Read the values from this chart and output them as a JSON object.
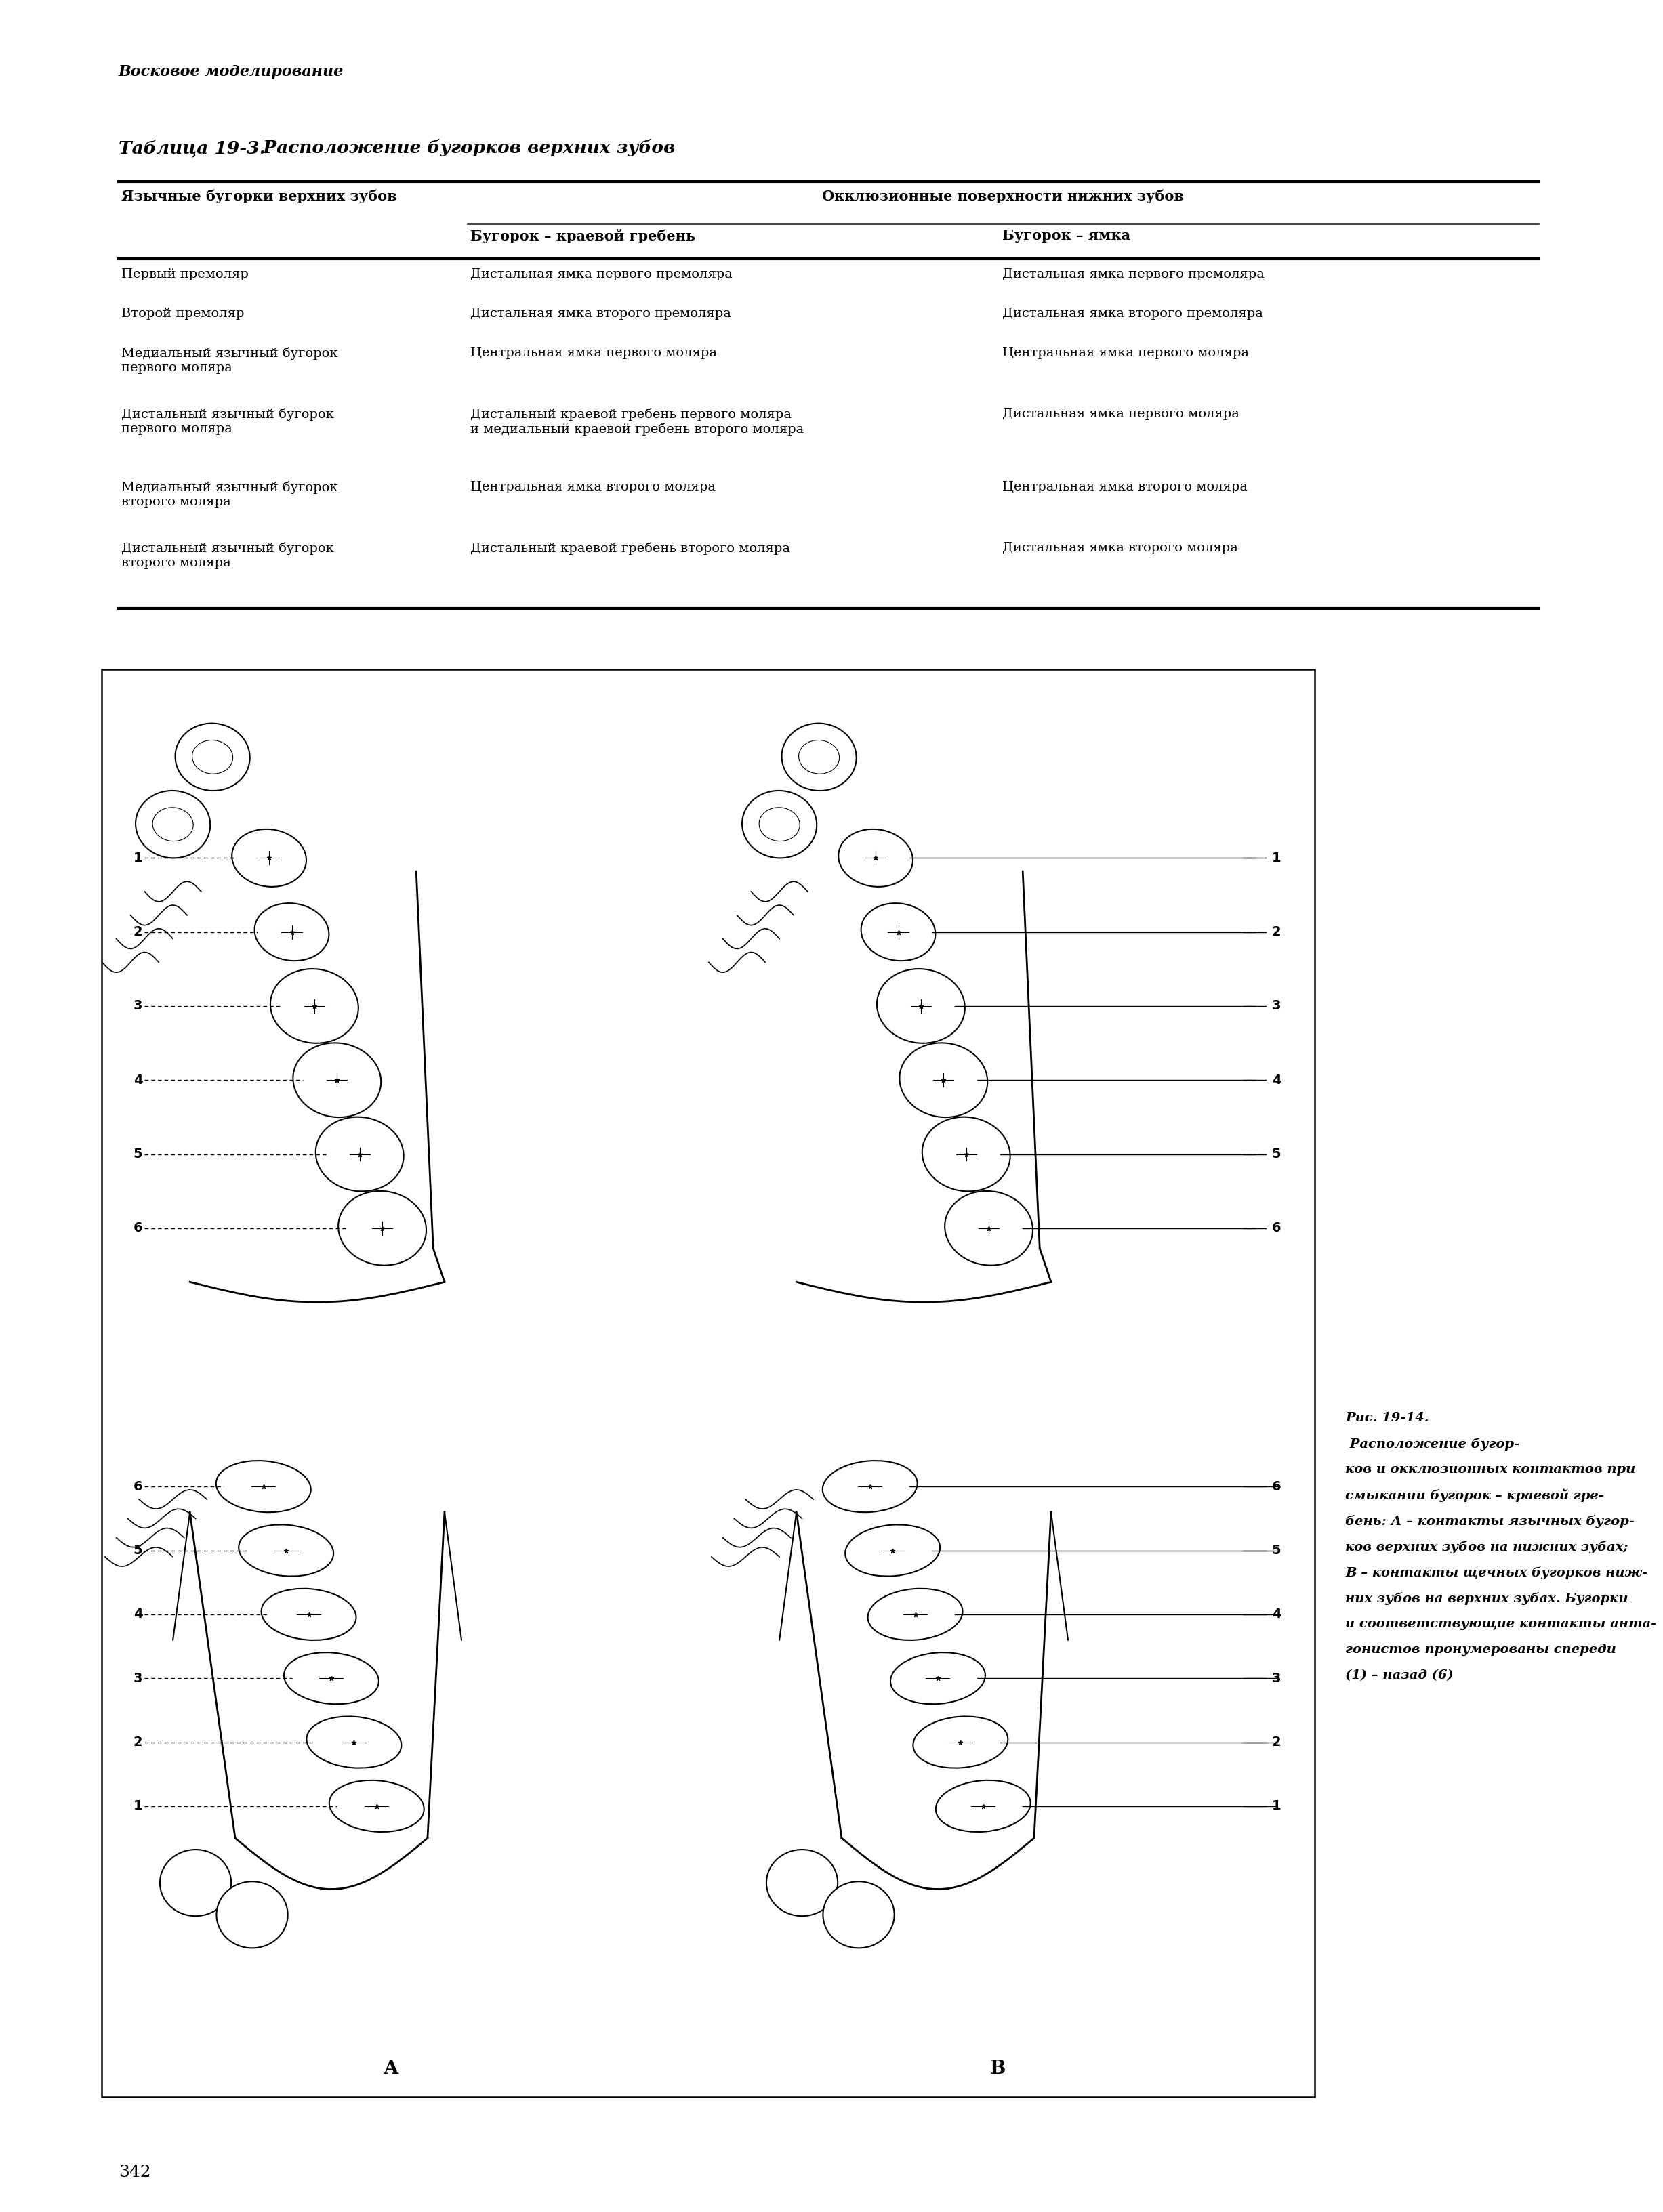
{
  "page_bg": "#ffffff",
  "header_italic": "Восковое моделирование",
  "table_title_normal": "Таблица 19-3.",
  "table_title_italic": "  Расположение бугорков верхних зубов",
  "col0_header": "Язычные бугорки верхних зубов",
  "col_group_header": "Окклюзионные поверхности нижних зубов",
  "col1_header": "Бугорок – краевой гребень",
  "col2_header": "Бугорок – ямка",
  "rows": [
    {
      "col0": "Первый премоляр",
      "col1": "Дистальная ямка первого премоляра",
      "col2": "Дистальная ямка первого премоляра"
    },
    {
      "col0": "Второй премоляр",
      "col1": "Дистальная ямка второго премоляра",
      "col2": "Дистальная ямка второго премоляра"
    },
    {
      "col0": "Медиальный язычный бугорок\nпервого моляра",
      "col1": "Центральная ямка первого моляра",
      "col2": "Центральная ямка первого моляра"
    },
    {
      "col0": "Дистальный язычный бугорок\nпервого моляра",
      "col1": "Дистальный краевой гребень первого моляра\nи медиальный краевой гребень второго моляра",
      "col2": "Дистальная ямка первого моляра"
    },
    {
      "col0": "Медиальный язычный бугорок\nвторого моляра",
      "col1": "Центральная ямка второго моляра",
      "col2": "Центральная ямка второго моляра"
    },
    {
      "col0": "Дистальный язычный бугорок\nвторого моляра",
      "col1": "Дистальный краевой гребень второго моляра",
      "col2": "Дистальная ямка второго моляра"
    }
  ],
  "figure_caption_bold": "Рис. 19-14.",
  "figure_caption_rest": " Расположение бугор-\nков и окклюзионных контактов при\nсмыкании бугорок – краевой гре-\nбень: А – контакты язычных бугор-\nков верхних зубов на нижних зубах;\nВ – контакты щечных бугорков ниж-\nних зубов на верхних зубах. Бугорки\nи соответствующие контакты анта-\nгонистов пронумерованы спереди\n(1) – назад (6)",
  "label_A": "А",
  "label_B": "В",
  "page_number": "342"
}
